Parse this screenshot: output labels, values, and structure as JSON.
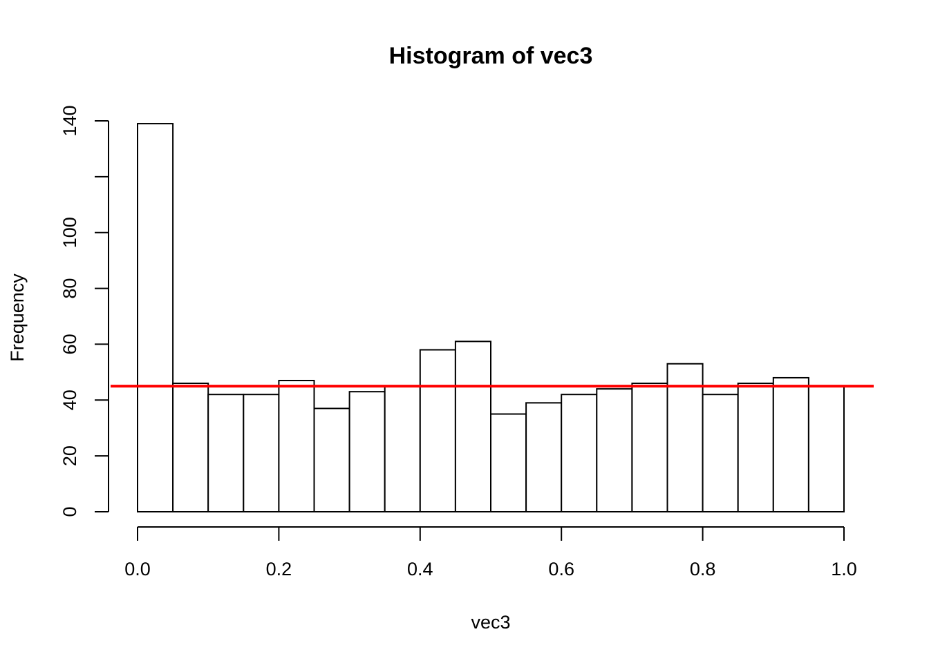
{
  "chart_data": {
    "type": "bar",
    "title": "Histogram of vec3",
    "xlabel": "vec3",
    "ylabel": "Frequency",
    "bin_edges": [
      0.0,
      0.05,
      0.1,
      0.15,
      0.2,
      0.25,
      0.3,
      0.35,
      0.4,
      0.45,
      0.5,
      0.55,
      0.6,
      0.65,
      0.7,
      0.75,
      0.8,
      0.85,
      0.9,
      0.95,
      1.0
    ],
    "values": [
      139,
      46,
      42,
      42,
      47,
      37,
      43,
      45,
      58,
      61,
      35,
      39,
      42,
      44,
      46,
      53,
      42,
      46,
      48,
      45
    ],
    "xlim": [
      0.0,
      1.0
    ],
    "ylim": [
      0,
      140
    ],
    "x_ticks": [
      0.0,
      0.2,
      0.4,
      0.6,
      0.8,
      1.0
    ],
    "x_tick_labels": [
      "0.0",
      "0.2",
      "0.4",
      "0.6",
      "0.8",
      "1.0"
    ],
    "y_ticks": [
      0,
      20,
      40,
      60,
      80,
      100,
      120,
      140
    ],
    "y_tick_labels": [
      "0",
      "20",
      "40",
      "60",
      "80",
      "100",
      "",
      "140"
    ],
    "reference_line": {
      "y": 45,
      "color": "#ff0000"
    },
    "bar_fill": "#ffffff",
    "bar_stroke": "#000000",
    "grid": false
  }
}
